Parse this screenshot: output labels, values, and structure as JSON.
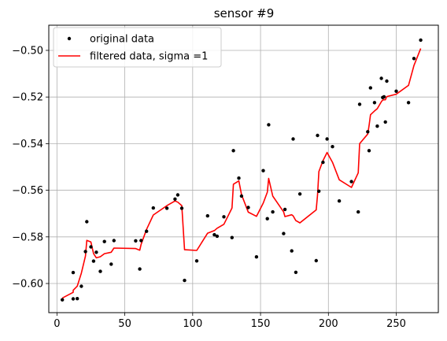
{
  "chart_data": {
    "type": "line",
    "title": "sensor #9",
    "xlabel": "",
    "ylabel": "",
    "xlim": [
      -6,
      281
    ],
    "ylim": [
      -0.6125,
      -0.4892
    ],
    "x_ticks": [
      0,
      50,
      100,
      150,
      200,
      250
    ],
    "y_ticks": [
      -0.6,
      -0.58,
      -0.56,
      -0.54,
      -0.52,
      -0.5
    ],
    "x_tick_labels": [
      "0",
      "50",
      "100",
      "150",
      "200",
      "250"
    ],
    "y_tick_labels": [
      "−0.60",
      "−0.58",
      "−0.56",
      "−0.54",
      "−0.52",
      "−0.50"
    ],
    "grid": true,
    "legend_position": "top-left",
    "series": [
      {
        "name": "original data",
        "style": "points",
        "color": "#000000",
        "x": [
          4,
          12,
          12,
          15,
          18,
          21,
          22,
          25,
          27,
          29,
          32,
          35,
          40,
          42,
          58,
          61,
          62,
          66,
          71,
          81,
          87,
          89,
          92,
          94,
          103,
          111,
          116,
          118,
          123,
          129,
          130,
          134,
          136,
          141,
          147,
          152,
          155,
          156,
          159,
          167,
          168,
          173,
          174,
          176,
          179,
          191,
          192,
          193,
          196,
          199,
          203,
          208,
          217,
          222,
          223,
          229,
          230,
          231,
          234,
          236,
          239,
          240,
          241,
          242,
          243,
          250,
          259,
          263,
          268
        ],
        "y": [
          -0.607,
          -0.6066,
          -0.5953,
          -0.6065,
          -0.6012,
          -0.5863,
          -0.5735,
          -0.5843,
          -0.5904,
          -0.5866,
          -0.5948,
          -0.582,
          -0.5917,
          -0.5816,
          -0.5817,
          -0.5938,
          -0.5816,
          -0.5776,
          -0.5676,
          -0.5677,
          -0.5638,
          -0.562,
          -0.5677,
          -0.5987,
          -0.5903,
          -0.571,
          -0.5791,
          -0.5797,
          -0.5714,
          -0.5803,
          -0.543,
          -0.5548,
          -0.5625,
          -0.5674,
          -0.5886,
          -0.5516,
          -0.5722,
          -0.5319,
          -0.5693,
          -0.5786,
          -0.5682,
          -0.586,
          -0.538,
          -0.5952,
          -0.5616,
          -0.5902,
          -0.5365,
          -0.5604,
          -0.548,
          -0.538,
          -0.5413,
          -0.5646,
          -0.5563,
          -0.5693,
          -0.5231,
          -0.5349,
          -0.543,
          -0.5161,
          -0.5224,
          -0.5325,
          -0.512,
          -0.5202,
          -0.5199,
          -0.5307,
          -0.5132,
          -0.5175,
          -0.5224,
          -0.5035,
          -0.4956
        ]
      },
      {
        "name": "filtered data, sigma =1",
        "style": "line",
        "color": "#ff0000",
        "x": [
          4,
          12,
          12,
          15,
          18,
          21,
          22,
          25,
          27,
          29,
          32,
          35,
          40,
          42,
          58,
          61,
          62,
          66,
          71,
          81,
          87,
          89,
          92,
          94,
          103,
          111,
          116,
          118,
          123,
          129,
          130,
          134,
          136,
          141,
          147,
          152,
          155,
          156,
          159,
          167,
          168,
          173,
          174,
          176,
          179,
          191,
          192,
          193,
          196,
          199,
          203,
          208,
          217,
          222,
          223,
          229,
          230,
          231,
          234,
          236,
          239,
          240,
          241,
          242,
          243,
          250,
          259,
          263,
          268
        ],
        "y": [
          -0.6062,
          -0.6038,
          -0.6029,
          -0.6011,
          -0.5955,
          -0.5882,
          -0.5815,
          -0.5822,
          -0.5872,
          -0.589,
          -0.5885,
          -0.5872,
          -0.5866,
          -0.5848,
          -0.585,
          -0.5857,
          -0.5832,
          -0.5768,
          -0.5706,
          -0.5666,
          -0.5646,
          -0.5651,
          -0.5666,
          -0.5855,
          -0.5858,
          -0.5784,
          -0.5773,
          -0.5763,
          -0.5746,
          -0.5676,
          -0.5574,
          -0.556,
          -0.5619,
          -0.5694,
          -0.5712,
          -0.5655,
          -0.5608,
          -0.5549,
          -0.5625,
          -0.5693,
          -0.5713,
          -0.5705,
          -0.571,
          -0.573,
          -0.574,
          -0.5684,
          -0.562,
          -0.552,
          -0.5473,
          -0.5438,
          -0.548,
          -0.5555,
          -0.5588,
          -0.5525,
          -0.54,
          -0.5359,
          -0.5322,
          -0.5276,
          -0.526,
          -0.525,
          -0.522,
          -0.5213,
          -0.5212,
          -0.5212,
          -0.5198,
          -0.5188,
          -0.515,
          -0.5065,
          -0.4992
        ]
      }
    ]
  }
}
